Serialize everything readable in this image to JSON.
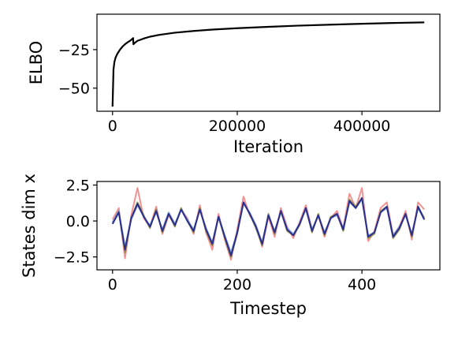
{
  "chart_data": [
    {
      "type": "line",
      "title": "",
      "xlabel": "Iteration",
      "ylabel": "ELBO",
      "xlim": [
        -25000,
        525000
      ],
      "ylim": [
        -65,
        -2
      ],
      "xticks": [
        0,
        200000,
        400000
      ],
      "xtick_labels": [
        "0",
        "200000",
        "400000"
      ],
      "yticks": [
        -25,
        -50
      ],
      "ytick_labels": [
        "−25",
        "−50"
      ],
      "grid": false,
      "series": [
        {
          "color": "#000000",
          "x": [
            0,
            1500,
            3000,
            5000,
            8000,
            12000,
            16000,
            20000,
            25000,
            29000,
            33000,
            33500,
            36000,
            40000,
            50000,
            60000,
            75000,
            100000,
            130000,
            160000,
            200000,
            250000,
            300000,
            350000,
            400000,
            450000,
            500000
          ],
          "y": [
            -62,
            -38,
            -33,
            -30,
            -27.5,
            -25,
            -23,
            -21.5,
            -20,
            -19,
            -17.5,
            -21.5,
            -20.5,
            -19.3,
            -17.8,
            -16.6,
            -15.4,
            -14,
            -12.9,
            -12,
            -11.1,
            -10.2,
            -9.4,
            -8.8,
            -8.2,
            -7.7,
            -7.3
          ]
        }
      ]
    },
    {
      "type": "line",
      "title": "",
      "xlabel": "Timestep",
      "ylabel": "States dim x",
      "xlim": [
        -25,
        525
      ],
      "ylim": [
        -3.4,
        2.75
      ],
      "xticks": [
        0,
        200,
        400
      ],
      "xtick_labels": [
        "0",
        "200",
        "400"
      ],
      "yticks": [
        2.5,
        0.0,
        -2.5
      ],
      "ytick_labels": [
        "2.5",
        "0.0",
        "−2.5"
      ],
      "grid": false,
      "series": [
        {
          "color": "#f08080",
          "x": [
            0,
            10,
            20,
            30,
            40,
            50,
            60,
            70,
            80,
            90,
            100,
            110,
            120,
            130,
            140,
            150,
            160,
            170,
            180,
            190,
            200,
            210,
            220,
            230,
            240,
            250,
            260,
            270,
            280,
            290,
            300,
            310,
            320,
            330,
            340,
            350,
            360,
            370,
            380,
            390,
            400,
            410,
            420,
            430,
            440,
            450,
            460,
            470,
            480,
            490,
            500
          ],
          "y": [
            0.1,
            0.9,
            -2.6,
            0.4,
            2.3,
            0.2,
            -0.4,
            1.0,
            -0.9,
            0.4,
            -0.3,
            0.8,
            0.2,
            -0.9,
            1.1,
            -0.8,
            -2.0,
            0.5,
            -1.3,
            -2.7,
            -0.6,
            1.7,
            0.4,
            -0.3,
            -1.8,
            0.3,
            -1.1,
            0.9,
            -0.4,
            -1.2,
            -0.1,
            1.1,
            -0.6,
            0.4,
            -1.1,
            0.2,
            0.7,
            -0.5,
            1.9,
            0.9,
            2.3,
            -1.4,
            -0.7,
            0.9,
            1.3,
            -1.0,
            -0.4,
            0.7,
            -1.3,
            1.3,
            0.8
          ]
        },
        {
          "color": "#8a8a3a",
          "x": [
            0,
            10,
            20,
            30,
            40,
            50,
            60,
            70,
            80,
            90,
            100,
            110,
            120,
            130,
            140,
            150,
            160,
            170,
            180,
            190,
            200,
            210,
            220,
            230,
            240,
            250,
            260,
            270,
            280,
            290,
            300,
            310,
            320,
            330,
            340,
            350,
            360,
            370,
            380,
            390,
            400,
            410,
            420,
            430,
            440,
            450,
            460,
            470,
            480,
            490,
            500
          ],
          "y": [
            -0.2,
            0.7,
            -2.2,
            0.2,
            1.3,
            0.4,
            -0.5,
            0.8,
            -0.8,
            0.5,
            -0.4,
            0.9,
            0.0,
            -0.8,
            0.9,
            -0.7,
            -1.7,
            0.3,
            -1.2,
            -2.5,
            -0.9,
            1.3,
            0.5,
            -0.5,
            -1.7,
            0.5,
            -0.9,
            0.7,
            -0.7,
            -1.0,
            -0.3,
            0.9,
            -0.8,
            0.5,
            -1.0,
            0.3,
            0.5,
            -0.7,
            1.5,
            1.0,
            1.6,
            -1.2,
            -0.9,
            0.7,
            1.0,
            -1.2,
            -0.6,
            0.5,
            -1.1,
            1.0,
            0.2
          ]
        },
        {
          "color": "#7b9fd6",
          "x": [
            0,
            10,
            20,
            30,
            40,
            50,
            60,
            70,
            80,
            90,
            100,
            110,
            120,
            130,
            140,
            150,
            160,
            170,
            180,
            190,
            200,
            210,
            220,
            230,
            240,
            250,
            260,
            270,
            280,
            290,
            300,
            310,
            320,
            330,
            340,
            350,
            360,
            370,
            380,
            390,
            400,
            410,
            420,
            430,
            440,
            450,
            460,
            470,
            480,
            490,
            500
          ],
          "y": [
            -0.1,
            0.7,
            -1.8,
            0.1,
            1.1,
            0.3,
            -0.3,
            0.6,
            -0.6,
            0.6,
            -0.2,
            0.8,
            0.1,
            -0.6,
            0.8,
            -0.5,
            -1.5,
            0.3,
            -1.0,
            -2.2,
            -0.8,
            1.2,
            0.6,
            -0.3,
            -1.5,
            0.4,
            -0.7,
            0.6,
            -0.5,
            -0.9,
            -0.2,
            0.8,
            -0.6,
            0.4,
            -0.8,
            0.2,
            0.4,
            -0.5,
            1.3,
            0.9,
            1.5,
            -1.0,
            -0.8,
            0.6,
            0.9,
            -1.0,
            -0.4,
            0.4,
            -0.9,
            0.9,
            0.1
          ]
        },
        {
          "color": "#2b2f8e",
          "x": [
            0,
            10,
            20,
            30,
            40,
            50,
            60,
            70,
            80,
            90,
            100,
            110,
            120,
            130,
            140,
            150,
            160,
            170,
            180,
            190,
            200,
            210,
            220,
            230,
            240,
            250,
            260,
            270,
            280,
            290,
            300,
            310,
            320,
            330,
            340,
            350,
            360,
            370,
            380,
            390,
            400,
            410,
            420,
            430,
            440,
            450,
            460,
            470,
            480,
            490,
            500
          ],
          "y": [
            -0.2,
            0.6,
            -2.0,
            0.2,
            1.2,
            0.3,
            -0.4,
            0.7,
            -0.7,
            0.5,
            -0.3,
            0.8,
            0.0,
            -0.7,
            0.8,
            -0.6,
            -1.6,
            0.3,
            -1.1,
            -2.4,
            -0.8,
            1.3,
            0.5,
            -0.4,
            -1.6,
            0.4,
            -0.8,
            0.7,
            -0.6,
            -1.0,
            -0.2,
            0.9,
            -0.7,
            0.4,
            -0.9,
            0.2,
            0.5,
            -0.6,
            1.4,
            0.9,
            1.6,
            -1.1,
            -0.8,
            0.6,
            1.0,
            -1.1,
            -0.5,
            0.5,
            -1.0,
            1.0,
            0.1
          ]
        }
      ]
    }
  ]
}
